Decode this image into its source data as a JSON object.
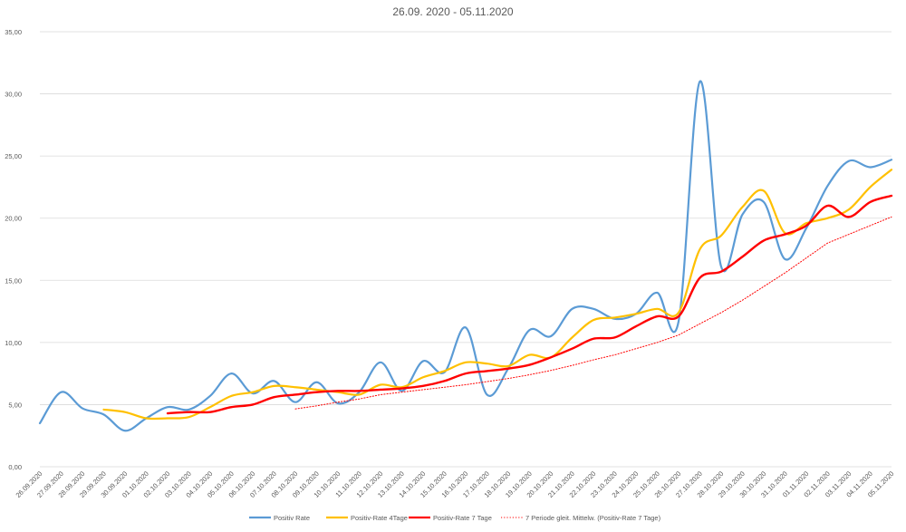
{
  "chart_data": {
    "type": "line",
    "title": "26.09. 2020 - 05.11.2020",
    "xlabel": "",
    "ylabel": "",
    "ylim": [
      0,
      35
    ],
    "yticks": [
      "0,00",
      "5,00",
      "10,00",
      "15,00",
      "20,00",
      "25,00",
      "30,00",
      "35,00"
    ],
    "grid": "horizontal",
    "legend_position": "bottom",
    "categories": [
      "26.09.2020",
      "27.09.2020",
      "28.09.2020",
      "29.09.2020",
      "30.09.2020",
      "01.10.2020",
      "02.10.2020",
      "03.10.2020",
      "04.10.2020",
      "05.10.2020",
      "06.10.2020",
      "07.10.2020",
      "08.10.2020",
      "09.10.2020",
      "10.10.2020",
      "11.10.2020",
      "12.10.2020",
      "13.10.2020",
      "14.10.2020",
      "15.10.2020",
      "16.10.2020",
      "17.10.2020",
      "18.10.2020",
      "19.10.2020",
      "20.10.2020",
      "21.10.2020",
      "22.10.2020",
      "23.10.2020",
      "24.10.2020",
      "25.10.2020",
      "26.10.2020",
      "27.10.2020",
      "28.10.2020",
      "29.10.2020",
      "30.10.2020",
      "31.10.2020",
      "01.11.2020",
      "02.11.2020",
      "03.11.2020",
      "04.11.2020",
      "05.11.2020"
    ],
    "series": [
      {
        "name": "Positiv Rate",
        "color": "#5B9BD5",
        "style": "solid",
        "values": [
          3.5,
          6.0,
          4.7,
          4.2,
          2.9,
          3.9,
          4.8,
          4.6,
          5.7,
          7.5,
          5.9,
          6.9,
          5.2,
          6.8,
          5.1,
          6.0,
          8.4,
          6.1,
          8.5,
          7.6,
          11.2,
          5.8,
          7.9,
          11.0,
          10.5,
          12.7,
          12.7,
          11.9,
          12.3,
          14.0,
          11.7,
          31.0,
          16.1,
          20.3,
          21.3,
          16.7,
          19.2,
          22.6,
          24.6,
          24.1,
          24.7
        ]
      },
      {
        "name": "Positiv-Rate 4Tage",
        "color": "#FFC000",
        "style": "solid",
        "values": [
          null,
          null,
          null,
          4.6,
          4.4,
          3.9,
          3.9,
          4.0,
          4.8,
          5.7,
          6.0,
          6.5,
          6.4,
          6.2,
          6.0,
          5.8,
          6.6,
          6.4,
          7.2,
          7.7,
          8.4,
          8.3,
          8.1,
          9.0,
          8.8,
          10.4,
          11.8,
          12.0,
          12.3,
          12.7,
          12.4,
          17.5,
          18.6,
          20.9,
          22.2,
          18.8,
          19.6,
          20.0,
          20.7,
          22.5,
          23.9
        ]
      },
      {
        "name": "Positiv-Rate 7 Tage",
        "color": "#FF0000",
        "style": "solid",
        "values": [
          null,
          null,
          null,
          null,
          null,
          null,
          4.3,
          4.4,
          4.4,
          4.8,
          5.0,
          5.6,
          5.8,
          6.0,
          6.1,
          6.1,
          6.2,
          6.3,
          6.5,
          6.9,
          7.5,
          7.7,
          7.9,
          8.2,
          8.8,
          9.5,
          10.3,
          10.4,
          11.3,
          12.1,
          12.1,
          15.2,
          15.7,
          16.9,
          18.2,
          18.7,
          19.4,
          21.0,
          20.1,
          21.3,
          21.8
        ]
      },
      {
        "name": "7 Periode gleit. Mittelw. (Positiv-Rate 7 Tage)",
        "color": "#FF0000",
        "style": "dotted",
        "values": [
          null,
          null,
          null,
          null,
          null,
          null,
          null,
          null,
          null,
          null,
          null,
          null,
          4.65,
          4.9,
          5.2,
          5.45,
          5.8,
          6.0,
          6.2,
          6.4,
          6.6,
          6.85,
          7.1,
          7.4,
          7.75,
          8.15,
          8.6,
          9.0,
          9.5,
          10.0,
          10.6,
          11.5,
          12.4,
          13.4,
          14.5,
          15.6,
          16.8,
          18.0,
          18.7,
          19.4,
          20.1
        ]
      }
    ]
  }
}
